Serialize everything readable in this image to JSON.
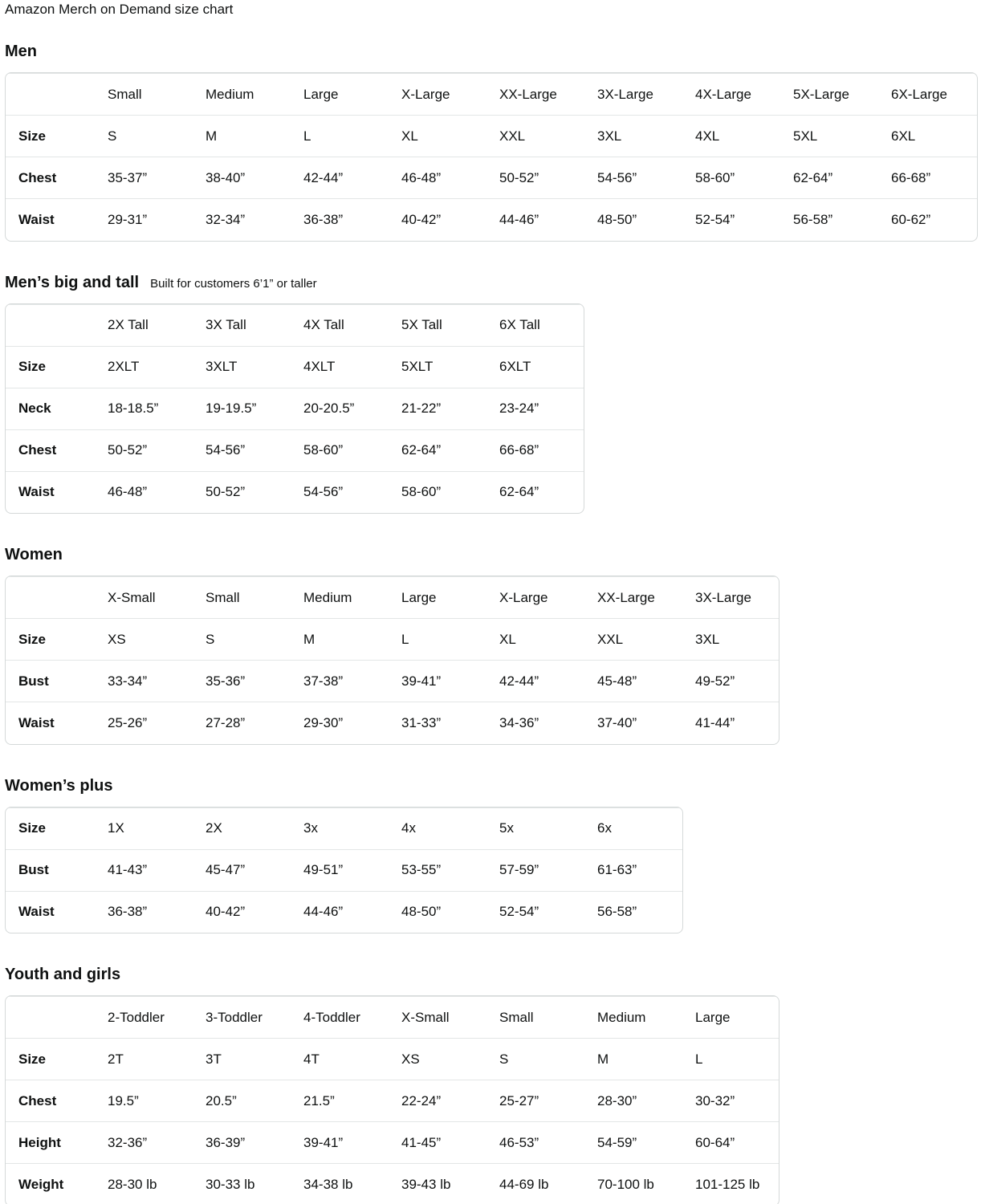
{
  "page_title": "Amazon Merch on Demand size chart",
  "colors": {
    "text": "#0f1111",
    "table_border": "#d5d9d9",
    "row_divider": "#e3e6e6",
    "background": "#ffffff"
  },
  "sections": {
    "men": {
      "heading": "Men",
      "table": {
        "columns": [
          "Small",
          "Medium",
          "Large",
          "X-Large",
          "XX-Large",
          "3X-Large",
          "4X-Large",
          "5X-Large",
          "6X-Large"
        ],
        "rows": [
          {
            "label": "Size",
            "values": [
              "S",
              "M",
              "L",
              "XL",
              "XXL",
              "3XL",
              "4XL",
              "5XL",
              "6XL"
            ]
          },
          {
            "label": "Chest",
            "values": [
              "35-37”",
              "38-40”",
              "42-44”",
              "46-48”",
              "50-52”",
              "54-56”",
              "58-60”",
              "62-64”",
              "66-68”"
            ]
          },
          {
            "label": "Waist",
            "values": [
              "29-31”",
              "32-34”",
              "36-38”",
              "40-42”",
              "44-46”",
              "48-50”",
              "52-54”",
              "56-58”",
              "60-62”"
            ]
          }
        ]
      }
    },
    "men_big_tall": {
      "heading": "Men’s big and tall",
      "subtitle": "Built for customers 6’1” or taller",
      "table": {
        "columns": [
          "2X Tall",
          "3X Tall",
          "4X Tall",
          "5X Tall",
          "6X Tall"
        ],
        "rows": [
          {
            "label": "Size",
            "values": [
              "2XLT",
              "3XLT",
              "4XLT",
              "5XLT",
              "6XLT"
            ]
          },
          {
            "label": "Neck",
            "values": [
              "18-18.5”",
              "19-19.5”",
              "20-20.5”",
              "21-22”",
              "23-24”"
            ]
          },
          {
            "label": "Chest",
            "values": [
              "50-52”",
              "54-56”",
              "58-60”",
              "62-64”",
              "66-68”"
            ]
          },
          {
            "label": "Waist",
            "values": [
              "46-48”",
              "50-52”",
              "54-56”",
              "58-60”",
              "62-64”"
            ]
          }
        ]
      }
    },
    "women": {
      "heading": "Women",
      "table": {
        "columns": [
          "X-Small",
          "Small",
          "Medium",
          "Large",
          "X-Large",
          "XX-Large",
          "3X-Large"
        ],
        "rows": [
          {
            "label": "Size",
            "values": [
              "XS",
              "S",
              "M",
              "L",
              "XL",
              "XXL",
              "3XL"
            ]
          },
          {
            "label": "Bust",
            "values": [
              "33-34”",
              "35-36”",
              "37-38”",
              "39-41”",
              "42-44”",
              "45-48”",
              "49-52”"
            ]
          },
          {
            "label": "Waist",
            "values": [
              "25-26”",
              "27-28”",
              "29-30”",
              "31-33”",
              "34-36”",
              "37-40”",
              "41-44”"
            ]
          }
        ]
      }
    },
    "women_plus": {
      "heading": "Women’s plus",
      "table": {
        "columns": null,
        "rows": [
          {
            "label": "Size",
            "values": [
              "1X",
              "2X",
              "3x",
              "4x",
              "5x",
              "6x"
            ]
          },
          {
            "label": "Bust",
            "values": [
              "41-43”",
              "45-47”",
              "49-51”",
              "53-55”",
              "57-59”",
              "61-63”"
            ]
          },
          {
            "label": "Waist",
            "values": [
              "36-38”",
              "40-42”",
              "44-46”",
              "48-50”",
              "52-54”",
              "56-58”"
            ]
          }
        ]
      }
    },
    "youth": {
      "heading": "Youth and girls",
      "table": {
        "columns": [
          "2-Toddler",
          "3-Toddler",
          "4-Toddler",
          "X-Small",
          "Small",
          "Medium",
          "Large"
        ],
        "rows": [
          {
            "label": "Size",
            "values": [
              "2T",
              "3T",
              "4T",
              "XS",
              "S",
              "M",
              "L"
            ]
          },
          {
            "label": "Chest",
            "values": [
              "19.5”",
              "20.5”",
              "21.5”",
              "22-24”",
              "25-27”",
              "28-30”",
              "30-32”"
            ]
          },
          {
            "label": "Height",
            "values": [
              "32-36”",
              "36-39”",
              "39-41”",
              "41-45”",
              "46-53”",
              "54-59”",
              "60-64”"
            ]
          },
          {
            "label": "Weight",
            "values": [
              "28-30 lb",
              "30-33 lb",
              "34-38 lb",
              "39-43 lb",
              "44-69 lb",
              "70-100 lb",
              "101-125 lb"
            ]
          }
        ]
      }
    }
  }
}
